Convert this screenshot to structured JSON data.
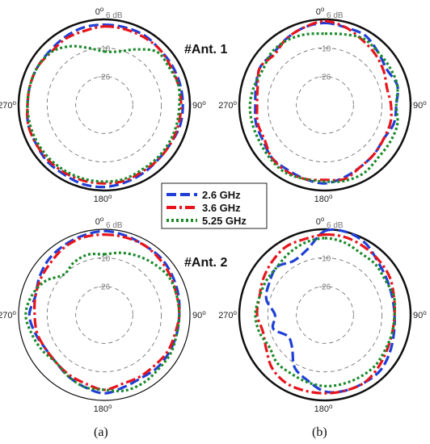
{
  "chart_data": {
    "type": "polar-line",
    "units": "dB",
    "radial_range": [
      -42,
      6
    ],
    "radial_ticks": [
      6,
      -10,
      -26
    ],
    "radial_tick_labels": [
      "6 dB",
      "-10",
      "-26"
    ],
    "angle_labels": [
      "0",
      "90",
      "180",
      "270"
    ],
    "degree_symbol": "o",
    "antenna_labels": [
      "#Ant. 1",
      "#Ant. 2"
    ],
    "panel_labels": [
      "(a)",
      "(b)"
    ],
    "legend": [
      "2.6 GHz",
      "3.6 GHz",
      "5.25 GHz"
    ],
    "colors": [
      "#1f3fd6",
      "#e8141b",
      "#1a8a2a"
    ],
    "angles_deg": [
      0,
      15,
      30,
      45,
      60,
      75,
      90,
      105,
      120,
      135,
      150,
      165,
      180,
      195,
      210,
      225,
      240,
      255,
      270,
      285,
      300,
      315,
      330,
      345
    ],
    "plots": [
      {
        "panel": "a",
        "antenna": "#Ant. 1",
        "series": [
          {
            "name": "2.6 GHz",
            "values": [
              3,
              3,
              3,
              2,
              2,
              2,
              2,
              2,
              1,
              1,
              2,
              3,
              4,
              4,
              3,
              3,
              2,
              2,
              1,
              1,
              1,
              1,
              2,
              3
            ]
          },
          {
            "name": "3.6 GHz",
            "values": [
              2,
              2,
              2,
              2,
              1,
              1,
              1,
              1,
              1,
              1,
              1,
              2,
              2,
              2,
              2,
              2,
              2,
              2,
              1,
              1,
              1,
              0,
              1,
              1
            ]
          },
          {
            "name": "5.25 GHz",
            "values": [
              -12,
              -11,
              -6,
              0,
              0,
              1,
              0,
              0,
              0,
              0,
              0,
              1,
              1,
              1,
              1,
              1,
              1,
              1,
              1,
              1,
              1,
              0,
              -4,
              -9
            ]
          }
        ]
      },
      {
        "panel": "b",
        "antenna": "#Ant. 1",
        "series": [
          {
            "name": "2.6 GHz",
            "values": [
              4,
              3,
              3,
              0,
              -2,
              0,
              -2,
              -2,
              -4,
              -3,
              -2,
              0,
              2,
              1,
              0,
              0,
              -2,
              -2,
              -3,
              -2,
              0,
              -1,
              1,
              3
            ]
          },
          {
            "name": "3.6 GHz",
            "values": [
              5,
              3,
              0,
              -2,
              -4,
              -6,
              -5,
              -4,
              -4,
              -3,
              -2,
              1,
              0,
              1,
              1,
              0,
              -3,
              -3,
              -4,
              -3,
              0,
              -2,
              1,
              3
            ]
          },
          {
            "name": "5.25 GHz",
            "values": [
              -2,
              -1,
              1,
              0,
              0,
              0,
              -2,
              0,
              0,
              0,
              2,
              2,
              1,
              1,
              2,
              1,
              0,
              0,
              0,
              -1,
              -2,
              0,
              0,
              -1
            ]
          }
        ]
      },
      {
        "panel": "a",
        "antenna": "#Ant. 2",
        "series": [
          {
            "name": "2.6 GHz",
            "values": [
              5,
              4,
              3,
              3,
              2,
              1,
              0,
              0,
              0,
              0,
              -1,
              0,
              2,
              0,
              -2,
              -4,
              -4,
              -2,
              0,
              -2,
              0,
              2,
              3,
              4
            ]
          },
          {
            "name": "3.6 GHz",
            "values": [
              3,
              3,
              3,
              2,
              1,
              0,
              0,
              -1,
              -1,
              -2,
              -2,
              -2,
              0,
              -2,
              -3,
              -4,
              -4,
              -3,
              -3,
              -2,
              -1,
              0,
              2,
              3
            ]
          },
          {
            "name": "5.25 GHz",
            "values": [
              -8,
              -6,
              -4,
              -2,
              0,
              0,
              0,
              0,
              1,
              1,
              2,
              2,
              0,
              0,
              -2,
              -4,
              -2,
              0,
              2,
              0,
              -4,
              -10,
              -8,
              -7
            ]
          }
        ]
      },
      {
        "panel": "b",
        "antenna": "#Ant. 2",
        "series": [
          {
            "name": "2.6 GHz",
            "values": [
              5,
              6,
              4,
              0,
              -2,
              -3,
              -3,
              -2,
              0,
              2,
              2,
              2,
              1,
              -4,
              -8,
              -16,
              -18,
              -12,
              -14,
              -8,
              -6,
              -4,
              -7,
              -4
            ]
          },
          {
            "name": "3.6 GHz",
            "values": [
              3,
              3,
              2,
              1,
              0,
              -2,
              -3,
              -3,
              -2,
              0,
              2,
              2,
              2,
              2,
              2,
              0,
              -4,
              -6,
              -4,
              -4,
              -2,
              0,
              2,
              2
            ]
          },
          {
            "name": "5.25 GHz",
            "values": [
              1,
              0,
              -2,
              -2,
              -3,
              -2,
              -3,
              -3,
              -3,
              -2,
              -2,
              -2,
              -2,
              -3,
              -4,
              -4,
              -6,
              -4,
              -3,
              -4,
              -4,
              -4,
              -2,
              0
            ]
          }
        ]
      }
    ]
  }
}
